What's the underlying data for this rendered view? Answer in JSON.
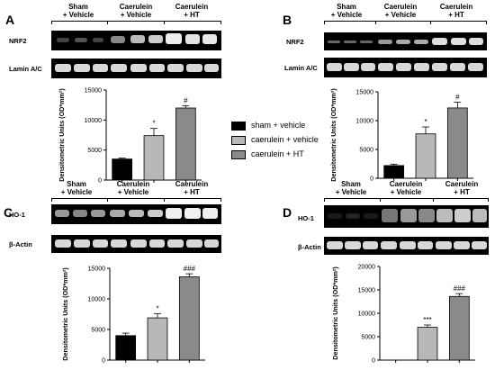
{
  "panels": {
    "A": {
      "letter": "A",
      "groups": [
        "Sham\n+ Vehicle",
        "Caerulein\n+ Vehicle",
        "Caerulein\n+ HT"
      ],
      "blots": [
        "NRF2",
        "Lamin A/C"
      ]
    },
    "B": {
      "letter": "B",
      "groups": [
        "Sham\n+ Vehicle",
        "Caerulein\n+ Vehicle",
        "Caerulein\n+ HT"
      ],
      "blots": [
        "NRF2",
        "Lamin A/C"
      ]
    },
    "C": {
      "letter": "C",
      "groups": [
        "Sham\n+ Vehicle",
        "Caerulein\n+ Vehicle",
        "Caerulein\n+ HT"
      ],
      "blots": [
        "HO-1",
        "β-Actin"
      ]
    },
    "D": {
      "letter": "D",
      "groups": [
        "Sham\n+ Vehicle",
        "Caerulein\n+ Vehicle",
        "Caerulein\n+ HT"
      ],
      "blots": [
        "HO-1",
        "β-Actin"
      ]
    }
  },
  "legend": [
    {
      "label": "sham + vehicle",
      "color": "#000000"
    },
    {
      "label": "caerulein + vehicle",
      "color": "#b8b8b8"
    },
    {
      "label": "caerulein + HT",
      "color": "#8a8a8a"
    }
  ],
  "chart_data": [
    {
      "panel": "A",
      "type": "bar",
      "ylabel": "Densitometric Units (OD*mm²)",
      "categories": [
        "sham + vehicle",
        "caerulein + vehicle",
        "caerulein + HT"
      ],
      "values": [
        3500,
        7400,
        12000
      ],
      "errors": [
        150,
        1200,
        400
      ],
      "annotations": [
        "",
        "*",
        "#"
      ],
      "yticks": [
        0,
        5000,
        10000,
        15000
      ],
      "ylim": [
        0,
        15000
      ]
    },
    {
      "panel": "B",
      "type": "bar",
      "ylabel": "Densitometric Units (OD*mm²)",
      "categories": [
        "sham + vehicle",
        "caerulein + vehicle",
        "caerulein + HT"
      ],
      "values": [
        2200,
        7700,
        12200
      ],
      "errors": [
        250,
        1200,
        1000
      ],
      "annotations": [
        "",
        "*",
        "#"
      ],
      "yticks": [
        0,
        5000,
        10000,
        15000
      ],
      "ylim": [
        0,
        15000
      ]
    },
    {
      "panel": "C",
      "type": "bar",
      "ylabel": "Densitometric Units (OD*mm²)",
      "categories": [
        "sham + vehicle",
        "caerulein + vehicle",
        "caerulein + HT"
      ],
      "values": [
        4000,
        6900,
        13600
      ],
      "errors": [
        400,
        700,
        500
      ],
      "annotations": [
        "",
        "*",
        "###"
      ],
      "yticks": [
        0,
        5000,
        10000,
        15000
      ],
      "ylim": [
        0,
        15000
      ]
    },
    {
      "panel": "D",
      "type": "bar",
      "ylabel": "Densitometric Units (OD*mm²)",
      "categories": [
        "sham + vehicle",
        "caerulein + vehicle",
        "caerulein + HT"
      ],
      "values": [
        0,
        7000,
        13600
      ],
      "errors": [
        0,
        500,
        600
      ],
      "annotations": [
        "",
        "***",
        "###"
      ],
      "yticks": [
        0,
        5000,
        10000,
        15000,
        20000
      ],
      "ylim": [
        0,
        20000
      ]
    }
  ]
}
